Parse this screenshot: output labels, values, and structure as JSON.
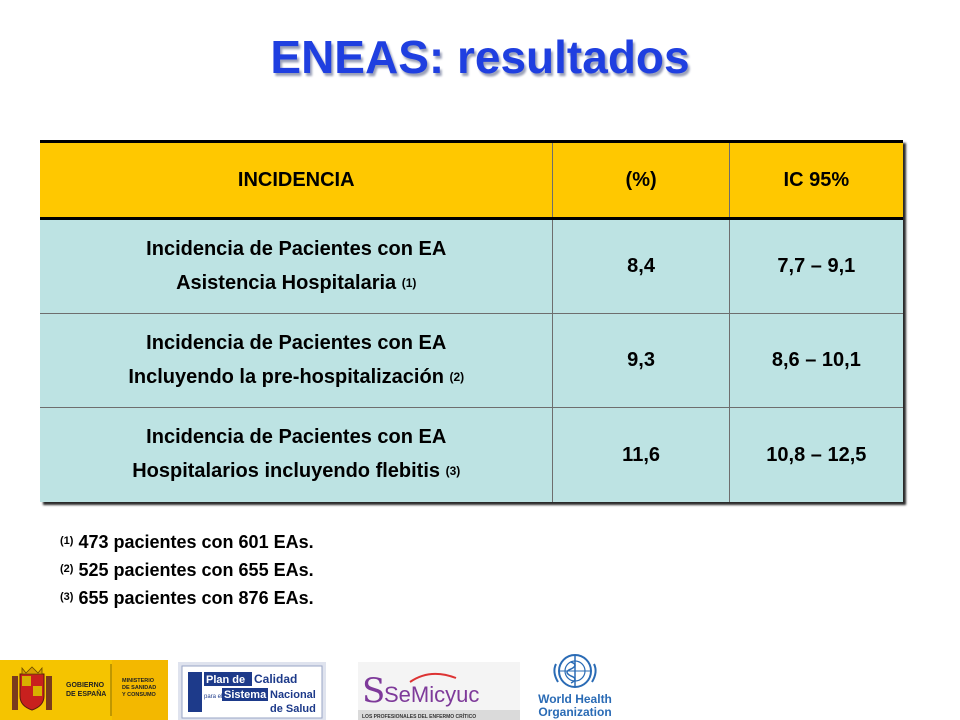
{
  "title": "ENEAS: resultados",
  "table": {
    "headers": [
      "INCIDENCIA",
      "(%)",
      "IC 95%"
    ],
    "rows": [
      {
        "line1": "Incidencia de Pacientes con EA",
        "line2": "Asistencia Hospitalaria",
        "ref": "(1)",
        "value": "8,4",
        "ci": "7,7 – 9,1"
      },
      {
        "line1": "Incidencia de Pacientes con EA",
        "line2": "Incluyendo la pre-hospitalización",
        "ref": "(2)",
        "value": "9,3",
        "ci": "8,6 – 10,1"
      },
      {
        "line1": "Incidencia de Pacientes con EA",
        "line2": "Hospitalarios incluyendo flebitis",
        "ref": "(3)",
        "value": "11,6",
        "ci": "10,8 – 12,5"
      }
    ]
  },
  "notes": [
    {
      "ref": "(1)",
      "text": "473 pacientes con 601 EAs."
    },
    {
      "ref": "(2)",
      "text": "525 pacientes con 655 EAs."
    },
    {
      "ref": "(3)",
      "text": "655 pacientes con 876 EAs."
    }
  ],
  "logos": {
    "gobierno": {
      "line1": "GOBIERNO",
      "line2": "DE ESPAÑA",
      "icon": "coat-of-arms-icon"
    },
    "ministerio": {
      "line1": "MINISTERIO",
      "line2": "DE SANIDAD",
      "line3": "Y CONSUMO"
    },
    "plan": {
      "a": "Plan de",
      "b": "Calidad",
      "c": "para el",
      "d": "Sistema",
      "e": "Nacional",
      "f": "de Salud"
    },
    "semicyuc": {
      "name": "SeMicyuc",
      "tagline": "LOS PROFESIONALES DEL ENFERMO CRÍTICO"
    },
    "who": {
      "line1": "World Health",
      "line2": "Organization",
      "icon": "who-emblem-icon"
    }
  },
  "colors": {
    "title": "#1f3fe0",
    "header_bg": "#ffc800",
    "row_bg": "#bde3e3",
    "highlight": "#d71919",
    "logo_yellow": "#f5c400",
    "plan_blue": "#1d3a8a",
    "who_blue": "#2a6bb5"
  }
}
